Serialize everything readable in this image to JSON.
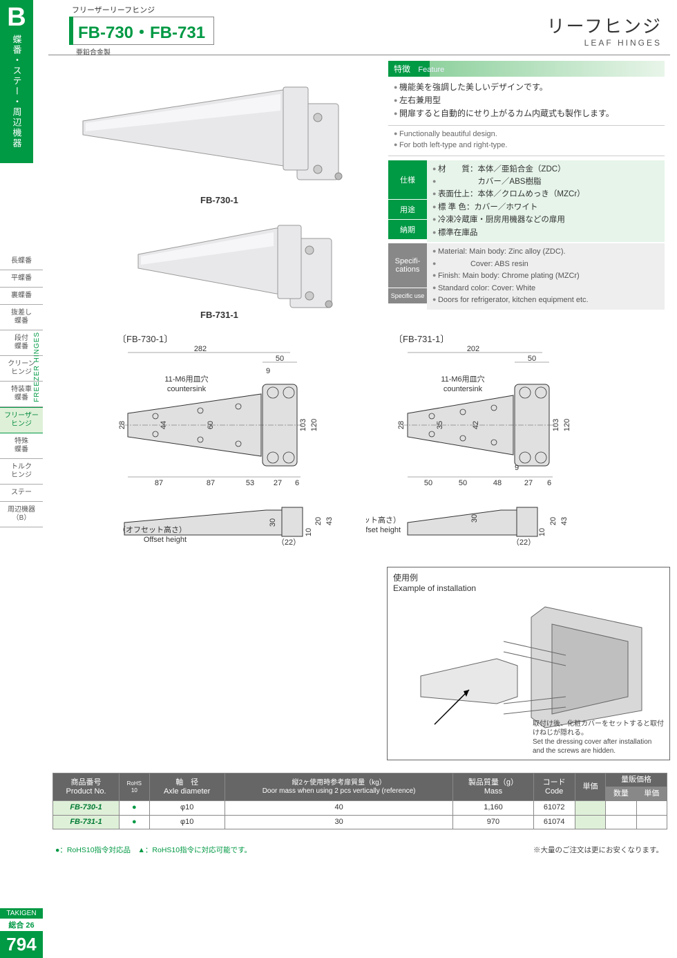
{
  "sidebar": {
    "letter": "B",
    "category_jp": "蝶番・ステー・周辺機器",
    "category_en": "FREEZER HINGES",
    "nav": [
      {
        "label": "長蝶番"
      },
      {
        "label": "平蝶番"
      },
      {
        "label": "裏蝶番"
      },
      {
        "label": "抜差し\n蝶番"
      },
      {
        "label": "段付\n蝶番"
      },
      {
        "label": "クリーン\nヒンジ"
      },
      {
        "label": "特装車\n蝶番"
      },
      {
        "label": "フリーザー\nヒンジ",
        "active": true
      },
      {
        "label": "特殊\n蝶番"
      },
      {
        "label": "トルク\nヒンジ"
      },
      {
        "label": "ステー"
      },
      {
        "label": "周辺機器\n（B）"
      }
    ],
    "brand": "TAKIGEN",
    "catalog": "総合 26",
    "page_number": "794"
  },
  "header": {
    "supertitle": "フリーザーリーフヒンジ",
    "model": "FB-730・FB-731",
    "material_note": "亜鉛合金製",
    "right_jp": "リーフヒンジ",
    "right_en": "LEAF HINGES"
  },
  "images": {
    "label1": "FB-730-1",
    "label2": "FB-731-1"
  },
  "feature": {
    "header_jp": "特徴",
    "header_en": "Feature",
    "items_jp": [
      "機能美を強調した美しいデザインです。",
      "左右兼用型",
      "開扉すると自動的にせり上がるカム内蔵式も製作します。"
    ],
    "items_en": [
      "Functionally beautiful design.",
      "For both left-type and right-type."
    ]
  },
  "specs_jp": {
    "labels": {
      "spec": "仕様",
      "use": "用途",
      "delivery": "納期"
    },
    "lines": [
      "材　　質：本体／亜鉛合金（ZDC）",
      "　　　　　カバー／ABS樹脂",
      "表面仕上：本体／クロムめっき（MZCr）",
      "標 準 色：カバー／ホワイト"
    ],
    "use": "冷凍冷蔵庫・厨房用機器などの扉用",
    "delivery": "標準在庫品"
  },
  "specs_en": {
    "labels": {
      "spec": "Specifi-\ncations",
      "use": "Specific use"
    },
    "lines": [
      "Material: Main body: Zinc alloy (ZDC).",
      "　　　　  Cover: ABS resin",
      "Finish: Main body: Chrome plating (MZCr)",
      "Standard color: Cover: White"
    ],
    "use": "Doors for refrigerator, kitchen equipment etc."
  },
  "drawings": {
    "left_label": "〔FB-730-1〕",
    "right_label": "〔FB-731-1〕",
    "countersink_jp": "11-M6用皿穴",
    "countersink_en": "countersink",
    "offset_jp": "（オフセット高さ）",
    "offset_en": "Offset height",
    "left": {
      "top_total": "282",
      "top_r1": "50",
      "top_r2": "9",
      "h_small": "28",
      "h_mid1": "44",
      "h_mid2": "60",
      "h_r1": "103",
      "h_r2": "120",
      "bot1": "87",
      "bot2": "87",
      "bot3": "53",
      "bot4": "27",
      "bot5": "6",
      "side_30": "30",
      "side_22": "（22）",
      "side_10": "10",
      "side_20": "20",
      "side_43": "43"
    },
    "right": {
      "top_total": "202",
      "top_r1": "50",
      "h_small": "28",
      "h_mid1": "35",
      "h_mid2": "42",
      "h_r1": "103",
      "h_r2": "120",
      "bot1": "50",
      "bot2": "50",
      "bot3": "48",
      "bot4": "27",
      "bot5": "6",
      "bot_9": "9",
      "side_30": "30",
      "side_22": "（22）",
      "side_10": "10",
      "side_20": "20",
      "side_43": "43"
    }
  },
  "install": {
    "title_jp": "使用例",
    "title_en": "Example of installation",
    "caption_jp": "取付け後、化粧カバーをセットすると取付けねじが隠れる。",
    "caption_en": "Set the dressing cover after installation and the screws are hidden."
  },
  "table": {
    "headers": {
      "pn_jp": "商品番号",
      "pn_en": "Product No.",
      "rohs": "RoHS\n10",
      "axle_jp": "軸　径",
      "axle_en": "Axle diameter",
      "door_jp": "縦2ヶ使用時参考扉質量（kg）",
      "door_en": "Door mass when using 2 pcs vertically (reference)",
      "mass_jp": "製品質量（g）",
      "mass_en": "Mass",
      "code_jp": "コード",
      "code_en": "Code",
      "unit_jp": "単価",
      "bulk_jp": "量販価格",
      "bulk_qty": "数量",
      "bulk_unit": "単価"
    },
    "rows": [
      {
        "pn": "FB-730-1",
        "rohs": "●",
        "axle": "φ10",
        "door": "40",
        "mass": "1,160",
        "code": "61072"
      },
      {
        "pn": "FB-731-1",
        "rohs": "●",
        "axle": "φ10",
        "door": "30",
        "mass": "970",
        "code": "61074"
      }
    ],
    "note_left": "●：RoHS10指令対応品　▲：RoHS10指令に対応可能です。",
    "note_right": "※大量のご注文は更にお安くなります。"
  },
  "colors": {
    "brand_green": "#009944",
    "light_green": "#dff0d8",
    "spec_bg": "#e6f4ea",
    "gray_label": "#888888",
    "hinge_fill": "#e8e8ea"
  }
}
